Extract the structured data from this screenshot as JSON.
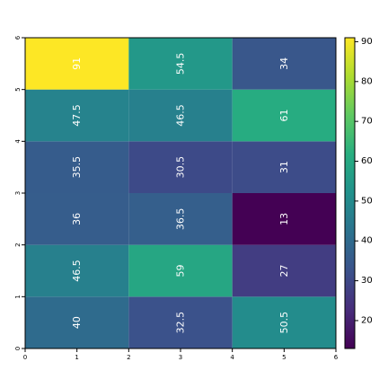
{
  "chart_data": {
    "type": "heatmap",
    "title": "",
    "xlabel": "",
    "ylabel": "",
    "xlim": [
      0,
      6
    ],
    "ylim": [
      0,
      6
    ],
    "x_ticks": [
      "0",
      "1",
      "2",
      "3",
      "4",
      "5",
      "6"
    ],
    "y_ticks": [
      "0",
      "1",
      "2",
      "3",
      "4",
      "5",
      "6"
    ],
    "x_cell_edges": [
      0,
      2,
      4,
      6
    ],
    "y_cell_edges": [
      0,
      1,
      2,
      3,
      4,
      5,
      6
    ],
    "values": [
      [
        40,
        32.5,
        50.5
      ],
      [
        46.5,
        59,
        27
      ],
      [
        36,
        36.5,
        13
      ],
      [
        35.5,
        30.5,
        31
      ],
      [
        47.5,
        46.5,
        61
      ],
      [
        91,
        54.5,
        34
      ]
    ],
    "value_labels": [
      [
        "40",
        "32.5",
        "50.5"
      ],
      [
        "46.5",
        "59",
        "27"
      ],
      [
        "36",
        "36.5",
        "13"
      ],
      [
        "35.5",
        "30.5",
        "31"
      ],
      [
        "47.5",
        "46.5",
        "61"
      ],
      [
        "91",
        "54.5",
        "34"
      ]
    ],
    "colorbar": {
      "range": [
        13,
        91
      ],
      "ticks": [
        "20",
        "30",
        "40",
        "50",
        "60",
        "70",
        "80",
        "90"
      ],
      "colormap": "viridis",
      "colors": [
        "#440154",
        "#472d7b",
        "#3b528b",
        "#2c728e",
        "#21918c",
        "#28ae80",
        "#5ec962",
        "#addc30",
        "#fde725"
      ]
    },
    "grid": false,
    "legend": "right"
  }
}
